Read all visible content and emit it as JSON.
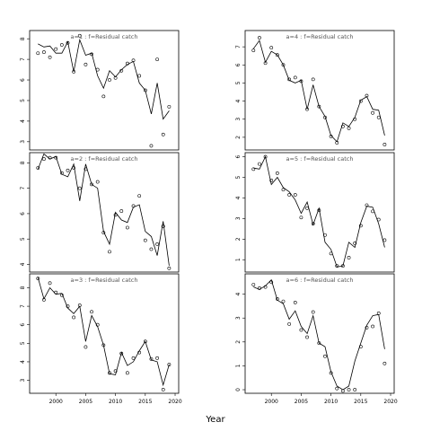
{
  "figure": {
    "xlabel": "Year"
  },
  "chart_data": [
    {
      "type": "line",
      "panel": "a=1",
      "strip": "a=1  :  f=Residual catch",
      "x": [
        1997,
        1998,
        1999,
        2000,
        2001,
        2002,
        2003,
        2004,
        2005,
        2006,
        2007,
        2008,
        2009,
        2010,
        2011,
        2012,
        2013,
        2014,
        2015,
        2016,
        2017,
        2018,
        2019
      ],
      "observed": [
        7.3,
        7.35,
        7.1,
        7.5,
        7.7,
        7.8,
        6.4,
        8.15,
        6.75,
        7.25,
        6.5,
        5.2,
        6.0,
        6.1,
        6.45,
        6.8,
        6.95,
        6.2,
        5.5,
        2.8,
        7.0,
        3.35,
        4.7
      ],
      "fitted": [
        7.75,
        7.6,
        7.65,
        7.3,
        7.3,
        7.85,
        6.4,
        7.95,
        7.2,
        7.3,
        6.2,
        5.6,
        6.45,
        6.15,
        6.5,
        6.75,
        6.9,
        5.85,
        5.5,
        4.35,
        5.85,
        4.1,
        4.5
      ],
      "xlim": [
        1995.6,
        2020.6
      ],
      "ylim": [
        2.6,
        8.4
      ],
      "xticks": [
        2000,
        2005,
        2010,
        2015,
        2020
      ],
      "yticks": [
        3,
        4,
        5,
        6,
        7,
        8
      ]
    },
    {
      "type": "line",
      "panel": "a=2",
      "strip": "a=2  :  f=Residual catch",
      "x": [
        1997,
        1998,
        1999,
        2000,
        2001,
        2002,
        2003,
        2004,
        2005,
        2006,
        2007,
        2008,
        2009,
        2010,
        2011,
        2012,
        2013,
        2014,
        2015,
        2016,
        2017,
        2018,
        2019
      ],
      "observed": [
        7.8,
        8.15,
        8.2,
        8.2,
        7.6,
        7.7,
        7.8,
        7.0,
        7.75,
        7.15,
        7.25,
        5.25,
        4.5,
        5.95,
        6.1,
        5.45,
        6.3,
        6.7,
        4.95,
        4.6,
        4.8,
        5.5,
        3.85
      ],
      "fitted": [
        7.75,
        8.35,
        8.15,
        8.25,
        7.55,
        7.45,
        7.95,
        6.5,
        7.95,
        7.15,
        7.0,
        5.3,
        4.8,
        6.05,
        5.75,
        5.65,
        6.25,
        6.35,
        5.3,
        5.1,
        4.35,
        5.7,
        3.95
      ],
      "xlim": [
        1995.6,
        2020.6
      ],
      "ylim": [
        3.7,
        8.4
      ],
      "xticks": [
        2000,
        2005,
        2010,
        2015,
        2020
      ],
      "yticks": [
        4,
        5,
        6,
        7,
        8
      ]
    },
    {
      "type": "line",
      "panel": "a=3",
      "strip": "a=3  :  f=Residual catch",
      "x": [
        1997,
        1998,
        1999,
        2000,
        2001,
        2002,
        2003,
        2004,
        2005,
        2006,
        2007,
        2008,
        2009,
        2010,
        2011,
        2012,
        2013,
        2014,
        2015,
        2016,
        2017,
        2018,
        2019
      ],
      "observed": [
        8.5,
        7.35,
        8.25,
        7.75,
        7.6,
        7.0,
        6.4,
        7.05,
        4.8,
        6.7,
        6.0,
        4.9,
        3.4,
        3.5,
        4.45,
        3.4,
        4.2,
        4.5,
        5.1,
        4.15,
        4.2,
        2.5,
        3.85
      ],
      "fitted": [
        8.55,
        7.4,
        8.0,
        7.65,
        7.7,
        6.9,
        6.6,
        7.0,
        5.1,
        6.5,
        5.9,
        4.9,
        3.35,
        3.3,
        4.5,
        3.8,
        4.0,
        4.6,
        5.1,
        4.1,
        4.0,
        2.75,
        3.85
      ],
      "xlim": [
        1995.6,
        2020.6
      ],
      "ylim": [
        2.3,
        8.75
      ],
      "xticks": [
        2000,
        2005,
        2010,
        2015,
        2020
      ],
      "yticks": [
        3,
        4,
        5,
        6,
        7,
        8
      ]
    },
    {
      "type": "line",
      "panel": "a=4",
      "strip": "a=4  :  f=Residual catch",
      "x": [
        1997,
        1998,
        1999,
        2000,
        2001,
        2002,
        2003,
        2004,
        2005,
        2006,
        2007,
        2008,
        2009,
        2010,
        2011,
        2012,
        2013,
        2014,
        2015,
        2016,
        2017,
        2018,
        2019
      ],
      "observed": [
        6.8,
        7.5,
        6.1,
        6.95,
        6.55,
        6.0,
        5.2,
        5.3,
        5.1,
        3.55,
        5.2,
        3.7,
        3.1,
        2.05,
        1.7,
        2.6,
        2.5,
        3.0,
        4.0,
        4.3,
        3.35,
        3.1,
        1.6
      ],
      "fitted": [
        6.9,
        7.35,
        6.15,
        6.75,
        6.55,
        6.0,
        5.15,
        5.0,
        5.15,
        3.55,
        4.9,
        3.7,
        3.15,
        2.1,
        1.75,
        2.8,
        2.6,
        3.1,
        4.05,
        4.25,
        3.55,
        3.5,
        2.1
      ],
      "xlim": [
        1995.6,
        2020.6
      ],
      "ylim": [
        1.3,
        7.9
      ],
      "xticks": [
        2000,
        2005,
        2010,
        2015,
        2020
      ],
      "yticks": [
        2,
        3,
        4,
        5,
        6,
        7
      ]
    },
    {
      "type": "line",
      "panel": "a=5",
      "strip": "a=5  :  f=Residual catch",
      "x": [
        1997,
        1998,
        1999,
        2000,
        2001,
        2002,
        2003,
        2004,
        2005,
        2006,
        2007,
        2008,
        2009,
        2010,
        2011,
        2012,
        2013,
        2014,
        2015,
        2016,
        2017,
        2018,
        2019
      ],
      "observed": [
        5.4,
        5.65,
        6.0,
        4.85,
        5.2,
        4.4,
        4.15,
        4.15,
        3.05,
        3.5,
        2.75,
        3.4,
        2.2,
        1.3,
        0.7,
        0.7,
        1.1,
        1.8,
        2.65,
        3.65,
        3.35,
        2.95,
        1.95
      ],
      "fitted": [
        5.45,
        5.4,
        6.0,
        4.65,
        5.0,
        4.5,
        4.3,
        3.9,
        3.25,
        3.8,
        2.7,
        3.5,
        1.85,
        1.5,
        0.65,
        0.7,
        1.85,
        1.6,
        2.8,
        3.6,
        3.55,
        2.75,
        1.6
      ],
      "xlim": [
        1995.6,
        2020.6
      ],
      "ylim": [
        0.4,
        6.2
      ],
      "xticks": [
        2000,
        2005,
        2010,
        2015,
        2020
      ],
      "yticks": [
        1,
        2,
        3,
        4,
        5,
        6
      ]
    },
    {
      "type": "line",
      "panel": "a=6",
      "strip": "a=6  :  f=Residual catch",
      "x": [
        1997,
        1998,
        1999,
        2000,
        2001,
        2002,
        2003,
        2004,
        2005,
        2006,
        2007,
        2008,
        2009,
        2010,
        2011,
        2012,
        2013,
        2014,
        2015,
        2016,
        2017,
        2018,
        2019
      ],
      "observed": [
        4.4,
        4.25,
        4.3,
        4.5,
        3.8,
        3.7,
        2.75,
        3.65,
        2.5,
        2.2,
        3.25,
        1.95,
        1.4,
        0.7,
        0.05,
        -0.05,
        0.0,
        0.0,
        1.8,
        2.6,
        2.65,
        3.2,
        1.1
      ],
      "fitted": [
        4.3,
        4.2,
        4.35,
        4.6,
        3.75,
        3.6,
        2.95,
        3.3,
        2.65,
        2.35,
        3.1,
        1.95,
        1.8,
        0.75,
        0.15,
        0.0,
        0.15,
        1.2,
        1.95,
        2.7,
        3.1,
        3.15,
        1.7
      ],
      "xlim": [
        1995.6,
        2020.6
      ],
      "ylim": [
        -0.15,
        4.85
      ],
      "xticks": [
        2000,
        2005,
        2010,
        2015,
        2020
      ],
      "yticks": [
        0,
        1,
        2,
        3,
        4
      ]
    }
  ]
}
